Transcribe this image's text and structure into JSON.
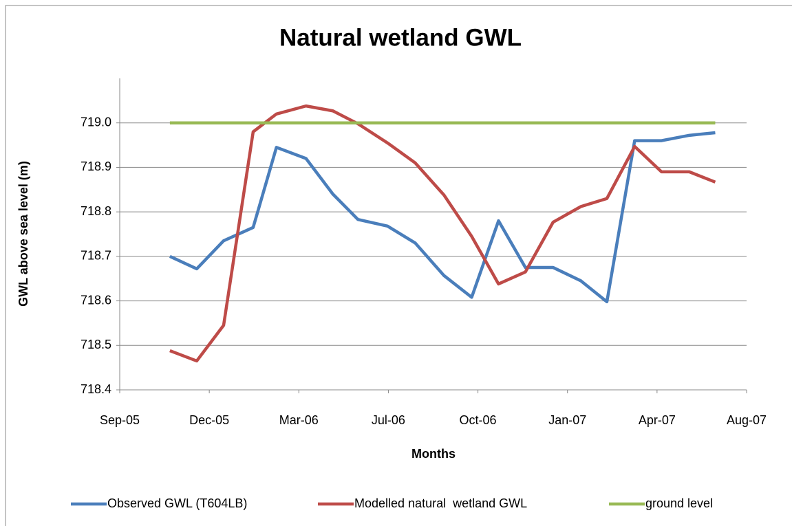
{
  "chart_data": {
    "type": "line",
    "title": "Natural wetland GWL",
    "x_label": "Months",
    "y_label": "GWL above sea level (m)",
    "xlim": [
      38600,
      39300
    ],
    "xticks": [
      {
        "value": 38600,
        "label": "Sep-05"
      },
      {
        "value": 38700,
        "label": "Dec-05"
      },
      {
        "value": 38800,
        "label": "Mar-06"
      },
      {
        "value": 38900,
        "label": "Jul-06"
      },
      {
        "value": 39000,
        "label": "Oct-06"
      },
      {
        "value": 39100,
        "label": "Jan-07"
      },
      {
        "value": 39200,
        "label": "Apr-07"
      },
      {
        "value": 39300,
        "label": "Aug-07"
      }
    ],
    "ylim": [
      718.4,
      719.1
    ],
    "yticks": [
      718.4,
      718.5,
      718.6,
      718.7,
      718.8,
      718.9,
      {
        "value": 719,
        "label": "719.0"
      }
    ],
    "grid": true,
    "legend": "bottom",
    "series": [
      {
        "name": "Observed GWL (T604LB)",
        "color": "#4a7ebb",
        "x": [
          38656,
          38686,
          38716,
          38749,
          38775,
          38808,
          38838,
          38866,
          38899,
          38930,
          38962,
          38993,
          39023,
          39053,
          39084,
          39115,
          39144,
          39175,
          39205,
          39236,
          39265
        ],
        "values": [
          718.7,
          718.672,
          718.735,
          718.765,
          718.945,
          718.92,
          718.84,
          718.783,
          718.768,
          718.73,
          718.657,
          718.608,
          718.78,
          718.675,
          718.675,
          718.645,
          718.598,
          718.96,
          718.96,
          718.972,
          718.978
        ]
      },
      {
        "name": "Modelled natural  wetland GWL",
        "color": "#be4b48",
        "x": [
          38656,
          38686,
          38716,
          38749,
          38775,
          38808,
          38838,
          38866,
          38899,
          38930,
          38962,
          38993,
          39023,
          39053,
          39084,
          39115,
          39144,
          39175,
          39205,
          39236,
          39265
        ],
        "values": [
          718.488,
          718.465,
          718.545,
          718.98,
          719.02,
          719.038,
          719.027,
          718.998,
          718.955,
          718.91,
          718.838,
          718.745,
          718.638,
          718.665,
          718.777,
          718.812,
          718.83,
          718.947,
          718.89,
          718.89,
          718.867
        ]
      },
      {
        "name": "ground level",
        "color": "#98b954",
        "x": [
          38656,
          39265
        ],
        "values": [
          719,
          719
        ]
      }
    ]
  }
}
